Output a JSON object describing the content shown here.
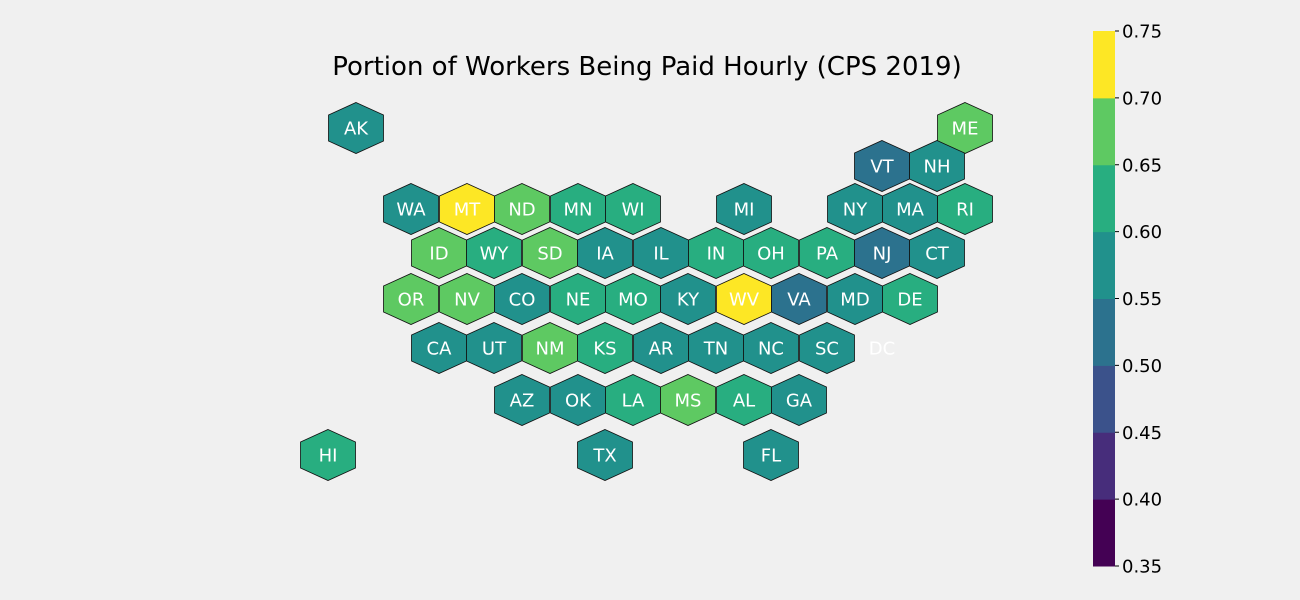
{
  "chart_data": {
    "type": "hex-tile choropleth map",
    "title": "Portion of Workers Being Paid Hourly (CPS 2019)",
    "colorbar": {
      "range": [
        0.35,
        0.75
      ],
      "ticks": [
        "0.35",
        "0.40",
        "0.45",
        "0.50",
        "0.55",
        "0.60",
        "0.65",
        "0.70",
        "0.75"
      ],
      "bins": [
        {
          "min": 0.35,
          "max": 0.4,
          "color": "#440154"
        },
        {
          "min": 0.4,
          "max": 0.45,
          "color": "#472d7b"
        },
        {
          "min": 0.45,
          "max": 0.5,
          "color": "#3b528b"
        },
        {
          "min": 0.5,
          "max": 0.55,
          "color": "#2c728e"
        },
        {
          "min": 0.55,
          "max": 0.6,
          "color": "#21918c"
        },
        {
          "min": 0.6,
          "max": 0.65,
          "color": "#28ae80"
        },
        {
          "min": 0.65,
          "max": 0.7,
          "color": "#5ec962"
        },
        {
          "min": 0.7,
          "max": 0.75,
          "color": "#fde725"
        }
      ]
    },
    "states": [
      {
        "abbr": "AK",
        "value": 0.575
      },
      {
        "abbr": "ME",
        "value": 0.675
      },
      {
        "abbr": "VT",
        "value": 0.525
      },
      {
        "abbr": "NH",
        "value": 0.575
      },
      {
        "abbr": "WA",
        "value": 0.575
      },
      {
        "abbr": "MT",
        "value": 0.725
      },
      {
        "abbr": "ND",
        "value": 0.675
      },
      {
        "abbr": "MN",
        "value": 0.625
      },
      {
        "abbr": "WI",
        "value": 0.625
      },
      {
        "abbr": "MI",
        "value": 0.575
      },
      {
        "abbr": "NY",
        "value": 0.575
      },
      {
        "abbr": "MA",
        "value": 0.575
      },
      {
        "abbr": "RI",
        "value": 0.625
      },
      {
        "abbr": "ID",
        "value": 0.675
      },
      {
        "abbr": "WY",
        "value": 0.625
      },
      {
        "abbr": "SD",
        "value": 0.675
      },
      {
        "abbr": "IA",
        "value": 0.575
      },
      {
        "abbr": "IL",
        "value": 0.575
      },
      {
        "abbr": "IN",
        "value": 0.625
      },
      {
        "abbr": "OH",
        "value": 0.625
      },
      {
        "abbr": "PA",
        "value": 0.625
      },
      {
        "abbr": "NJ",
        "value": 0.525
      },
      {
        "abbr": "CT",
        "value": 0.575
      },
      {
        "abbr": "OR",
        "value": 0.675
      },
      {
        "abbr": "NV",
        "value": 0.675
      },
      {
        "abbr": "CO",
        "value": 0.575
      },
      {
        "abbr": "NE",
        "value": 0.625
      },
      {
        "abbr": "MO",
        "value": 0.625
      },
      {
        "abbr": "KY",
        "value": 0.575
      },
      {
        "abbr": "WV",
        "value": 0.725
      },
      {
        "abbr": "VA",
        "value": 0.525
      },
      {
        "abbr": "MD",
        "value": 0.575
      },
      {
        "abbr": "DE",
        "value": 0.625
      },
      {
        "abbr": "CA",
        "value": 0.575
      },
      {
        "abbr": "UT",
        "value": 0.575
      },
      {
        "abbr": "NM",
        "value": 0.675
      },
      {
        "abbr": "KS",
        "value": 0.625
      },
      {
        "abbr": "AR",
        "value": 0.575
      },
      {
        "abbr": "TN",
        "value": 0.575
      },
      {
        "abbr": "NC",
        "value": 0.575
      },
      {
        "abbr": "SC",
        "value": 0.575
      },
      {
        "abbr": "DC",
        "value": null
      },
      {
        "abbr": "AZ",
        "value": 0.575
      },
      {
        "abbr": "OK",
        "value": 0.575
      },
      {
        "abbr": "LA",
        "value": 0.625
      },
      {
        "abbr": "MS",
        "value": 0.675
      },
      {
        "abbr": "AL",
        "value": 0.625
      },
      {
        "abbr": "GA",
        "value": 0.575
      },
      {
        "abbr": "HI",
        "value": 0.625
      },
      {
        "abbr": "TX",
        "value": 0.575
      },
      {
        "abbr": "FL",
        "value": 0.575
      }
    ]
  }
}
